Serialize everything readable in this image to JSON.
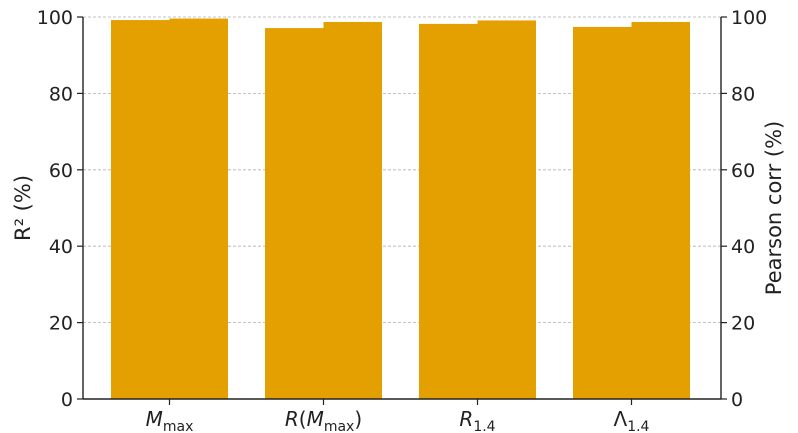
{
  "chart_data": {
    "type": "bar",
    "categories": [
      {
        "main": "M",
        "sub": "max",
        "italic_main": true,
        "wrap": false
      },
      {
        "main": "R(M",
        "sub": "max",
        "italic_main": true,
        "wrap": true
      },
      {
        "main": "R",
        "sub": "1.4",
        "italic_main": true,
        "wrap": false
      },
      {
        "main": "Λ",
        "sub": "1.4",
        "italic_main": false,
        "wrap": false
      }
    ],
    "series": [
      {
        "values": [
          99.2,
          97.1,
          98.2,
          97.4
        ],
        "axis": "left"
      },
      {
        "values": [
          99.6,
          98.7,
          99.1,
          98.7
        ],
        "axis": "right"
      }
    ],
    "bar_color": "#e3a000",
    "ylabel_left": "R² (%)",
    "ylabel_right": "Pearson corr (%)",
    "ylim": [
      0,
      100
    ],
    "yticks": [
      0,
      20,
      40,
      60,
      80,
      100
    ],
    "grid": true
  }
}
